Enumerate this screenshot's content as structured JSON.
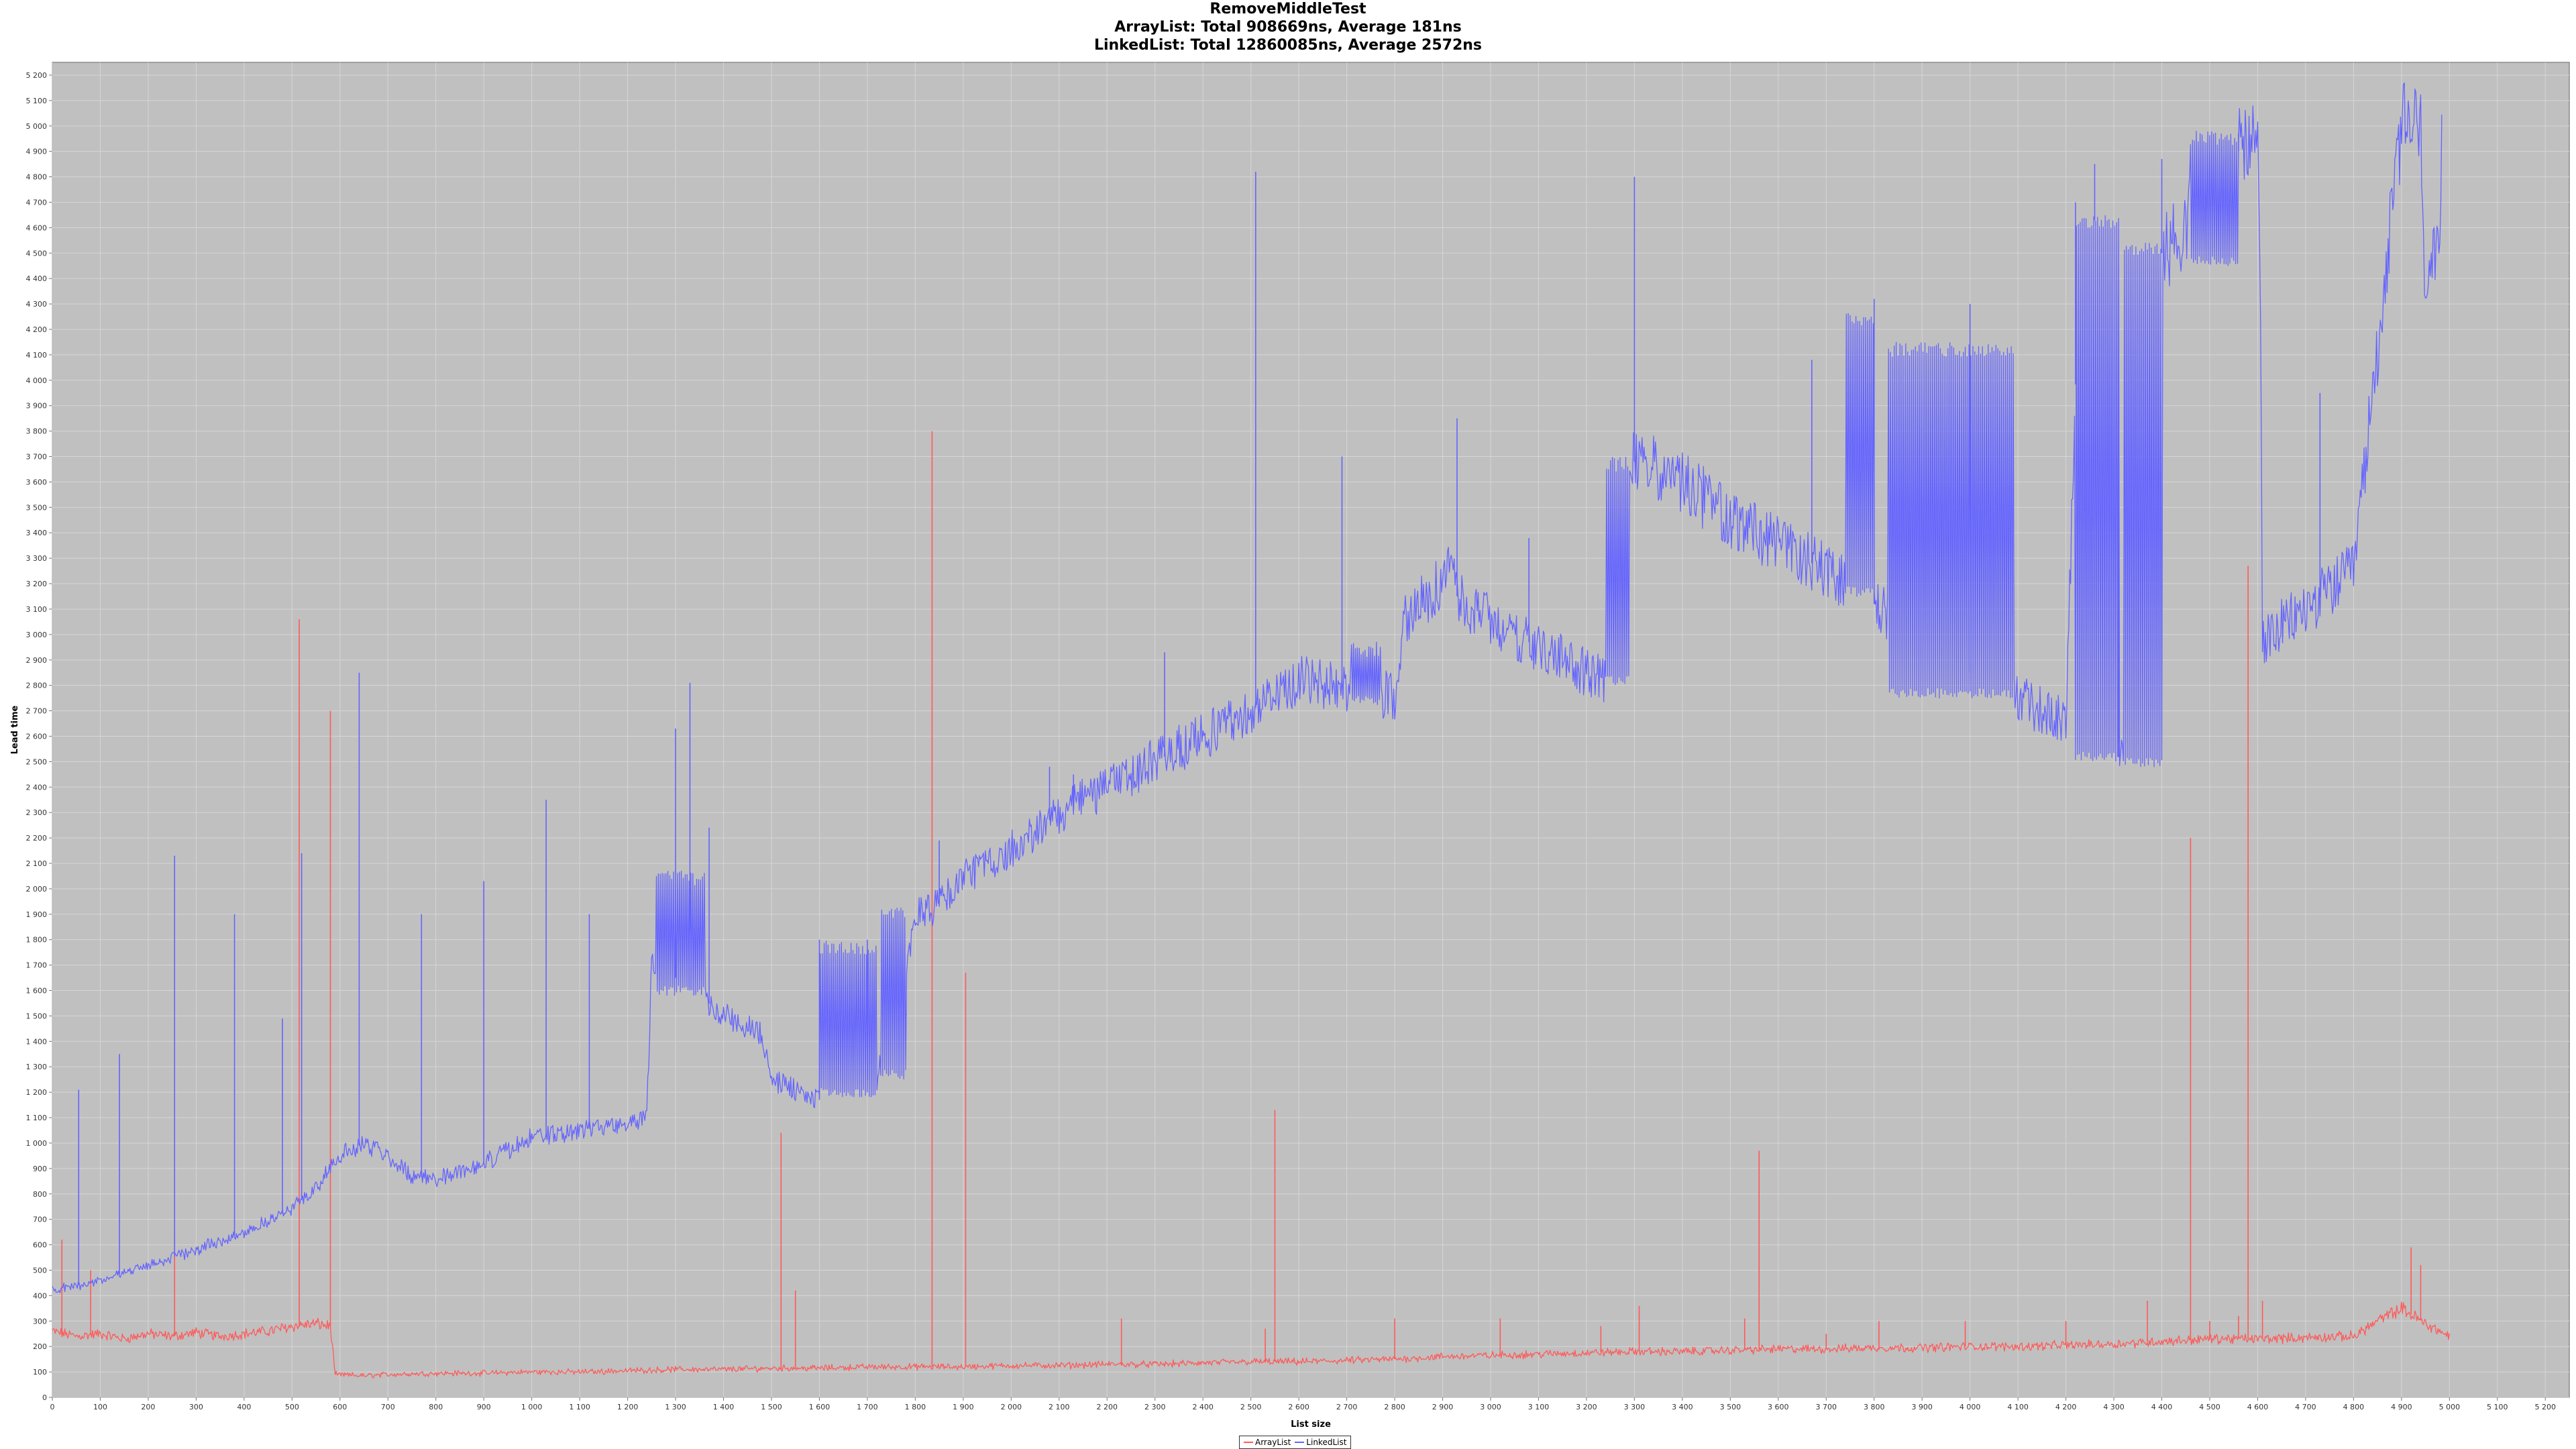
{
  "chart_data": {
    "type": "line",
    "title": "RemoveMiddleTest",
    "subtitle_lines": [
      "ArrayList: Total 908669ns, Average 181ns",
      "LinkedList: Total 12860085ns, Average 2572ns"
    ],
    "xlabel": "List size",
    "ylabel": "Lead time",
    "xlim": [
      0,
      5250
    ],
    "ylim": [
      0,
      5250
    ],
    "x_ticks": [
      0,
      100,
      200,
      300,
      400,
      500,
      600,
      700,
      800,
      900,
      1000,
      1100,
      1200,
      1300,
      1400,
      1500,
      1600,
      1700,
      1800,
      1900,
      2000,
      2100,
      2200,
      2300,
      2400,
      2500,
      2600,
      2700,
      2800,
      2900,
      3000,
      3100,
      3200,
      3300,
      3400,
      3500,
      3600,
      3700,
      3800,
      3900,
      4000,
      4100,
      4200,
      4300,
      4400,
      4500,
      4600,
      4700,
      4800,
      4900,
      5000,
      5100,
      5200
    ],
    "y_ticks": [
      0,
      100,
      200,
      300,
      400,
      500,
      600,
      700,
      800,
      900,
      1000,
      1100,
      1200,
      1300,
      1400,
      1500,
      1600,
      1700,
      1800,
      1900,
      2000,
      2100,
      2200,
      2300,
      2400,
      2500,
      2600,
      2700,
      2800,
      2900,
      3000,
      3100,
      3200,
      3300,
      3400,
      3500,
      3600,
      3700,
      3800,
      3900,
      4000,
      4100,
      4200,
      4300,
      4400,
      4500,
      4600,
      4700,
      4800,
      4900,
      5000,
      5100,
      5200
    ],
    "grid": true,
    "legend_position": "bottom-center",
    "series": [
      {
        "name": "ArrayList",
        "color": "#ff5a5a",
        "points": [
          [
            0,
            260
          ],
          [
            50,
            240
          ],
          [
            100,
            250
          ],
          [
            150,
            230
          ],
          [
            200,
            250
          ],
          [
            250,
            240
          ],
          [
            300,
            255
          ],
          [
            350,
            240
          ],
          [
            400,
            250
          ],
          [
            450,
            260
          ],
          [
            500,
            280
          ],
          [
            550,
            290
          ],
          [
            580,
            280
          ],
          [
            590,
            90
          ],
          [
            650,
            85
          ],
          [
            700,
            90
          ],
          [
            800,
            95
          ],
          [
            900,
            95
          ],
          [
            1000,
            100
          ],
          [
            1100,
            100
          ],
          [
            1200,
            105
          ],
          [
            1300,
            110
          ],
          [
            1400,
            110
          ],
          [
            1500,
            115
          ],
          [
            1600,
            115
          ],
          [
            1700,
            120
          ],
          [
            1800,
            120
          ],
          [
            1900,
            120
          ],
          [
            2000,
            125
          ],
          [
            2100,
            125
          ],
          [
            2200,
            130
          ],
          [
            2300,
            130
          ],
          [
            2400,
            135
          ],
          [
            2500,
            140
          ],
          [
            2600,
            140
          ],
          [
            2700,
            145
          ],
          [
            2800,
            150
          ],
          [
            2900,
            160
          ],
          [
            3000,
            165
          ],
          [
            3100,
            170
          ],
          [
            3200,
            175
          ],
          [
            3300,
            180
          ],
          [
            3400,
            180
          ],
          [
            3500,
            185
          ],
          [
            3600,
            190
          ],
          [
            3700,
            190
          ],
          [
            3800,
            195
          ],
          [
            3900,
            195
          ],
          [
            4000,
            200
          ],
          [
            4100,
            200
          ],
          [
            4200,
            205
          ],
          [
            4300,
            210
          ],
          [
            4400,
            220
          ],
          [
            4500,
            230
          ],
          [
            4600,
            230
          ],
          [
            4700,
            235
          ],
          [
            4800,
            240
          ],
          [
            4850,
            300
          ],
          [
            4900,
            350
          ],
          [
            4950,
            290
          ],
          [
            5000,
            240
          ]
        ],
        "spikes": [
          [
            20,
            620
          ],
          [
            80,
            500
          ],
          [
            255,
            650
          ],
          [
            515,
            3060
          ],
          [
            580,
            2700
          ],
          [
            1520,
            1040
          ],
          [
            1550,
            420
          ],
          [
            1835,
            3800
          ],
          [
            1905,
            1670
          ],
          [
            2230,
            310
          ],
          [
            2530,
            270
          ],
          [
            2550,
            1130
          ],
          [
            2800,
            310
          ],
          [
            3020,
            310
          ],
          [
            3230,
            280
          ],
          [
            3310,
            360
          ],
          [
            3530,
            310
          ],
          [
            3560,
            970
          ],
          [
            3700,
            250
          ],
          [
            3810,
            300
          ],
          [
            3990,
            300
          ],
          [
            4200,
            300
          ],
          [
            4370,
            380
          ],
          [
            4460,
            2200
          ],
          [
            4500,
            300
          ],
          [
            4560,
            320
          ],
          [
            4580,
            3270
          ],
          [
            4610,
            380
          ],
          [
            4920,
            590
          ],
          [
            4940,
            520
          ]
        ]
      },
      {
        "name": "LinkedList",
        "color": "#6464ff",
        "points": [
          [
            0,
            420
          ],
          [
            100,
            460
          ],
          [
            200,
            520
          ],
          [
            300,
            580
          ],
          [
            400,
            650
          ],
          [
            500,
            740
          ],
          [
            550,
            830
          ],
          [
            600,
            950
          ],
          [
            650,
            1000
          ],
          [
            700,
            950
          ],
          [
            750,
            870
          ],
          [
            800,
            860
          ],
          [
            900,
            920
          ],
          [
            1000,
            1020
          ],
          [
            1100,
            1050
          ],
          [
            1200,
            1080
          ],
          [
            1240,
            1100
          ],
          [
            1250,
            1700
          ],
          [
            1300,
            1650
          ],
          [
            1350,
            1580
          ],
          [
            1400,
            1500
          ],
          [
            1450,
            1460
          ],
          [
            1480,
            1430
          ],
          [
            1500,
            1250
          ],
          [
            1600,
            1170
          ],
          [
            1650,
            1200
          ],
          [
            1700,
            1250
          ],
          [
            1750,
            1350
          ],
          [
            1800,
            1900
          ],
          [
            1850,
            1930
          ],
          [
            1900,
            2050
          ],
          [
            2000,
            2150
          ],
          [
            2100,
            2300
          ],
          [
            2200,
            2400
          ],
          [
            2300,
            2500
          ],
          [
            2400,
            2600
          ],
          [
            2500,
            2700
          ],
          [
            2600,
            2820
          ],
          [
            2700,
            2800
          ],
          [
            2800,
            2750
          ],
          [
            2820,
            3060
          ],
          [
            2900,
            3200
          ],
          [
            2920,
            3250
          ],
          [
            2930,
            3150
          ],
          [
            3000,
            3050
          ],
          [
            3100,
            2950
          ],
          [
            3200,
            2850
          ],
          [
            3250,
            2810
          ],
          [
            3260,
            3670
          ],
          [
            3300,
            3680
          ],
          [
            3400,
            3600
          ],
          [
            3500,
            3450
          ],
          [
            3600,
            3350
          ],
          [
            3700,
            3250
          ],
          [
            3800,
            3120
          ],
          [
            3900,
            3000
          ],
          [
            4000,
            2850
          ],
          [
            4100,
            2750
          ],
          [
            4200,
            2650
          ],
          [
            4230,
            4650
          ],
          [
            4300,
            4600
          ],
          [
            4305,
            2520
          ],
          [
            4380,
            2490
          ],
          [
            4400,
            4500
          ],
          [
            4450,
            4600
          ],
          [
            4480,
            4950
          ],
          [
            4560,
            4900
          ],
          [
            4600,
            4950
          ],
          [
            4605,
            4500
          ],
          [
            4610,
            2970
          ],
          [
            4700,
            3100
          ],
          [
            4800,
            3250
          ],
          [
            4900,
            5000
          ],
          [
            4940,
            5000
          ],
          [
            4945,
            4450
          ],
          [
            4980,
            4450
          ],
          [
            4985,
            4990
          ]
        ],
        "spikes": [
          [
            55,
            1210
          ],
          [
            140,
            1350
          ],
          [
            255,
            2130
          ],
          [
            380,
            1900
          ],
          [
            480,
            1490
          ],
          [
            520,
            2140
          ],
          [
            640,
            2850
          ],
          [
            770,
            1900
          ],
          [
            900,
            2030
          ],
          [
            1030,
            2350
          ],
          [
            1120,
            1900
          ],
          [
            1300,
            2630
          ],
          [
            1330,
            2810
          ],
          [
            1370,
            2240
          ],
          [
            1600,
            1800
          ],
          [
            1700,
            1800
          ],
          [
            1850,
            2190
          ],
          [
            2080,
            2480
          ],
          [
            2130,
            2450
          ],
          [
            2320,
            2930
          ],
          [
            2510,
            4820
          ],
          [
            2690,
            3700
          ],
          [
            2930,
            3850
          ],
          [
            3080,
            3380
          ],
          [
            3300,
            4800
          ],
          [
            3670,
            4080
          ],
          [
            3800,
            4320
          ],
          [
            4000,
            4300
          ],
          [
            4220,
            4700
          ],
          [
            4260,
            4850
          ],
          [
            4310,
            4330
          ],
          [
            4400,
            4870
          ],
          [
            4560,
            4970
          ],
          [
            4730,
            3950
          ]
        ],
        "bands": [
          [
            1260,
            1360,
            1580,
            2070
          ],
          [
            1600,
            1720,
            1180,
            1800
          ],
          [
            1730,
            1780,
            1250,
            1930
          ],
          [
            2710,
            2770,
            2720,
            2970
          ],
          [
            3240,
            3290,
            2800,
            3700
          ],
          [
            3740,
            3800,
            3150,
            4270
          ],
          [
            3830,
            4090,
            2750,
            4150
          ],
          [
            4220,
            4310,
            2500,
            4650
          ],
          [
            4320,
            4400,
            2480,
            4550
          ],
          [
            4460,
            4560,
            4450,
            4980
          ]
        ]
      }
    ]
  }
}
